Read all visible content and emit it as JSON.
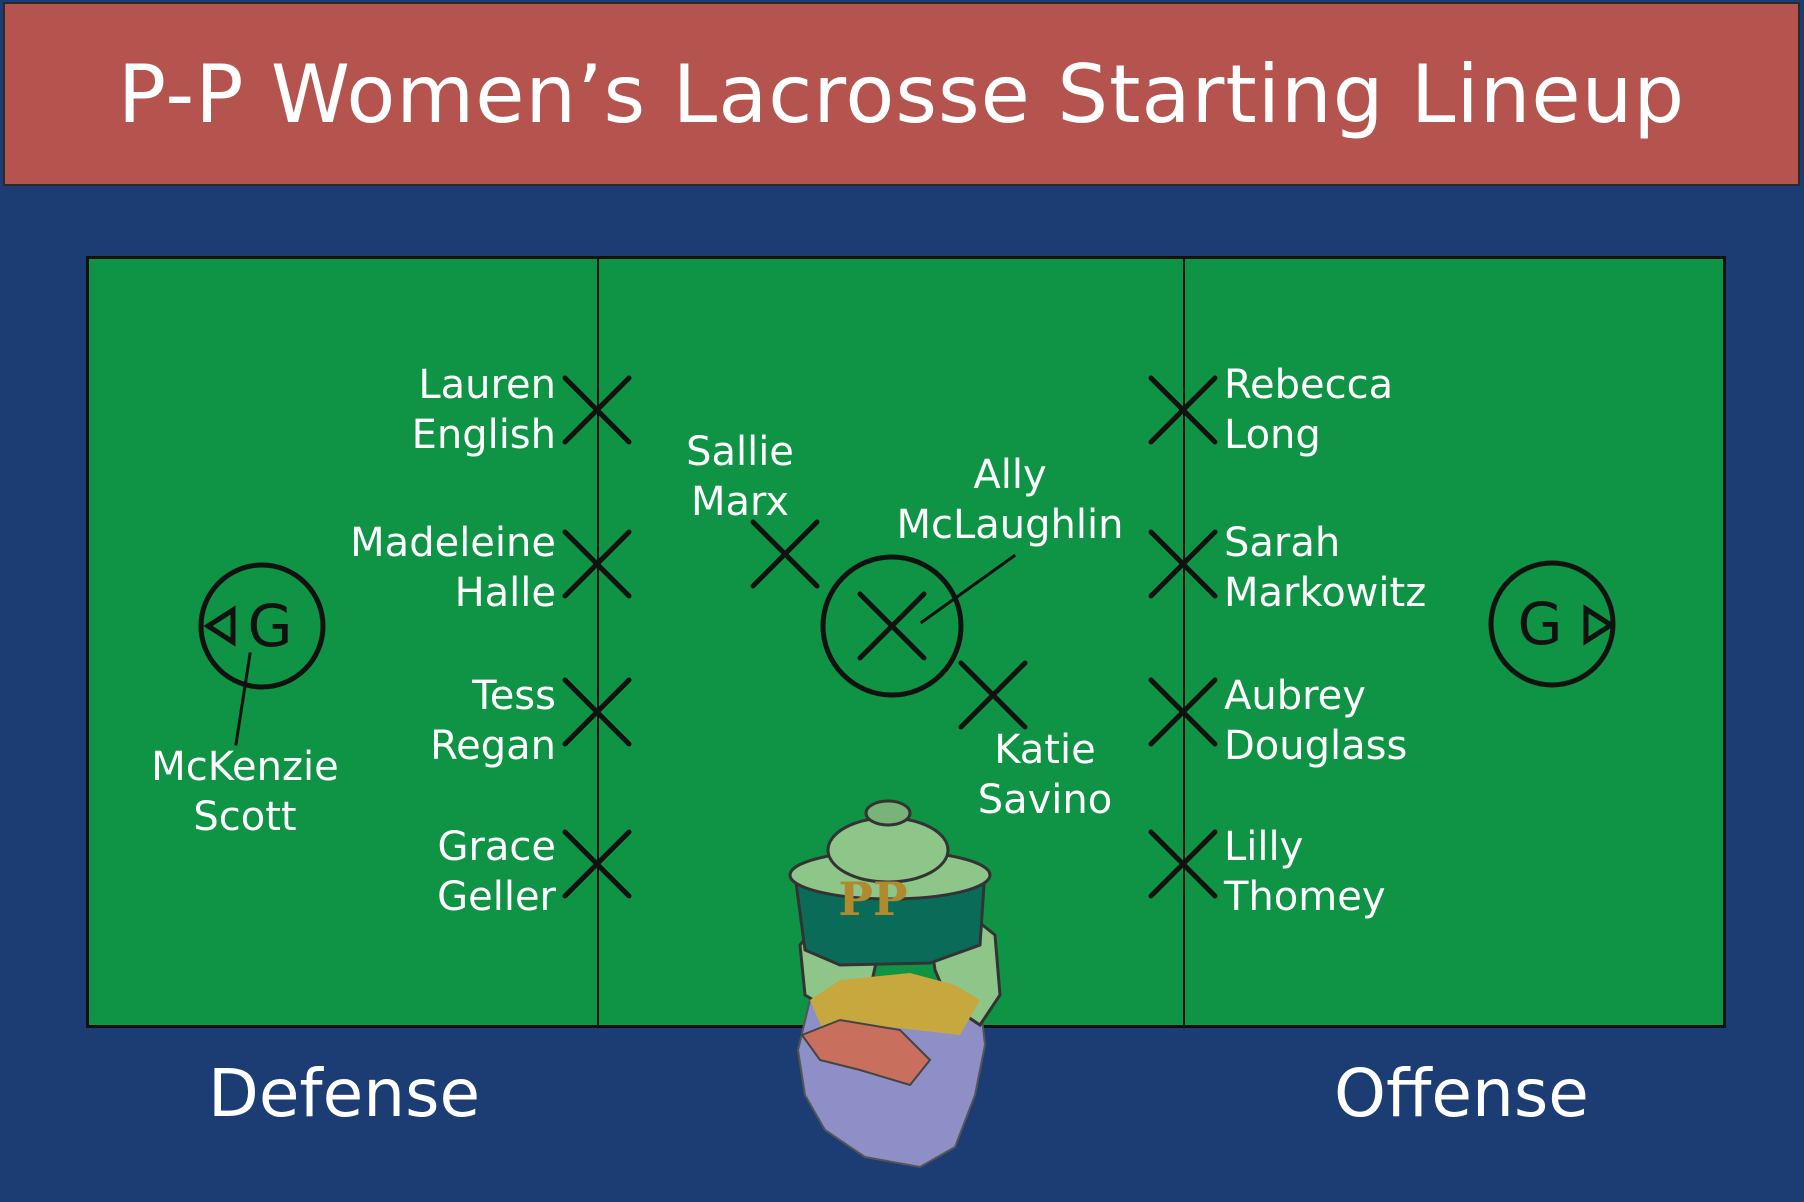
{
  "title": "P-P Women’s Lacrosse Starting Lineup",
  "colors": {
    "banner": "#b5534e",
    "background": "#1b3d73",
    "field": "#0e9444",
    "lines": "#111111",
    "text": "#ffffff"
  },
  "goal_marker": "G",
  "goalie": {
    "first": "McKenzie",
    "last": "Scott"
  },
  "defense_players": [
    {
      "first": "Lauren",
      "last": "English"
    },
    {
      "first": "Madeleine",
      "last": "Halle"
    },
    {
      "first": "Tess",
      "last": "Regan"
    },
    {
      "first": "Grace",
      "last": "Geller"
    }
  ],
  "midfield_players": [
    {
      "first": "Sallie",
      "last": "Marx"
    },
    {
      "first": "Ally",
      "last": "McLaughlin"
    },
    {
      "first": "Katie",
      "last": "Savino"
    }
  ],
  "offense_players": [
    {
      "first": "Rebecca",
      "last": "Long"
    },
    {
      "first": "Sarah",
      "last": "Markowitz"
    },
    {
      "first": "Aubrey",
      "last": "Douglass"
    },
    {
      "first": "Lilly",
      "last": "Thomey"
    }
  ],
  "labels": {
    "defense": "Defense",
    "offense": "Offense"
  },
  "mascot": {
    "icon": "duck-mascot-icon",
    "badge_text": "PP"
  }
}
